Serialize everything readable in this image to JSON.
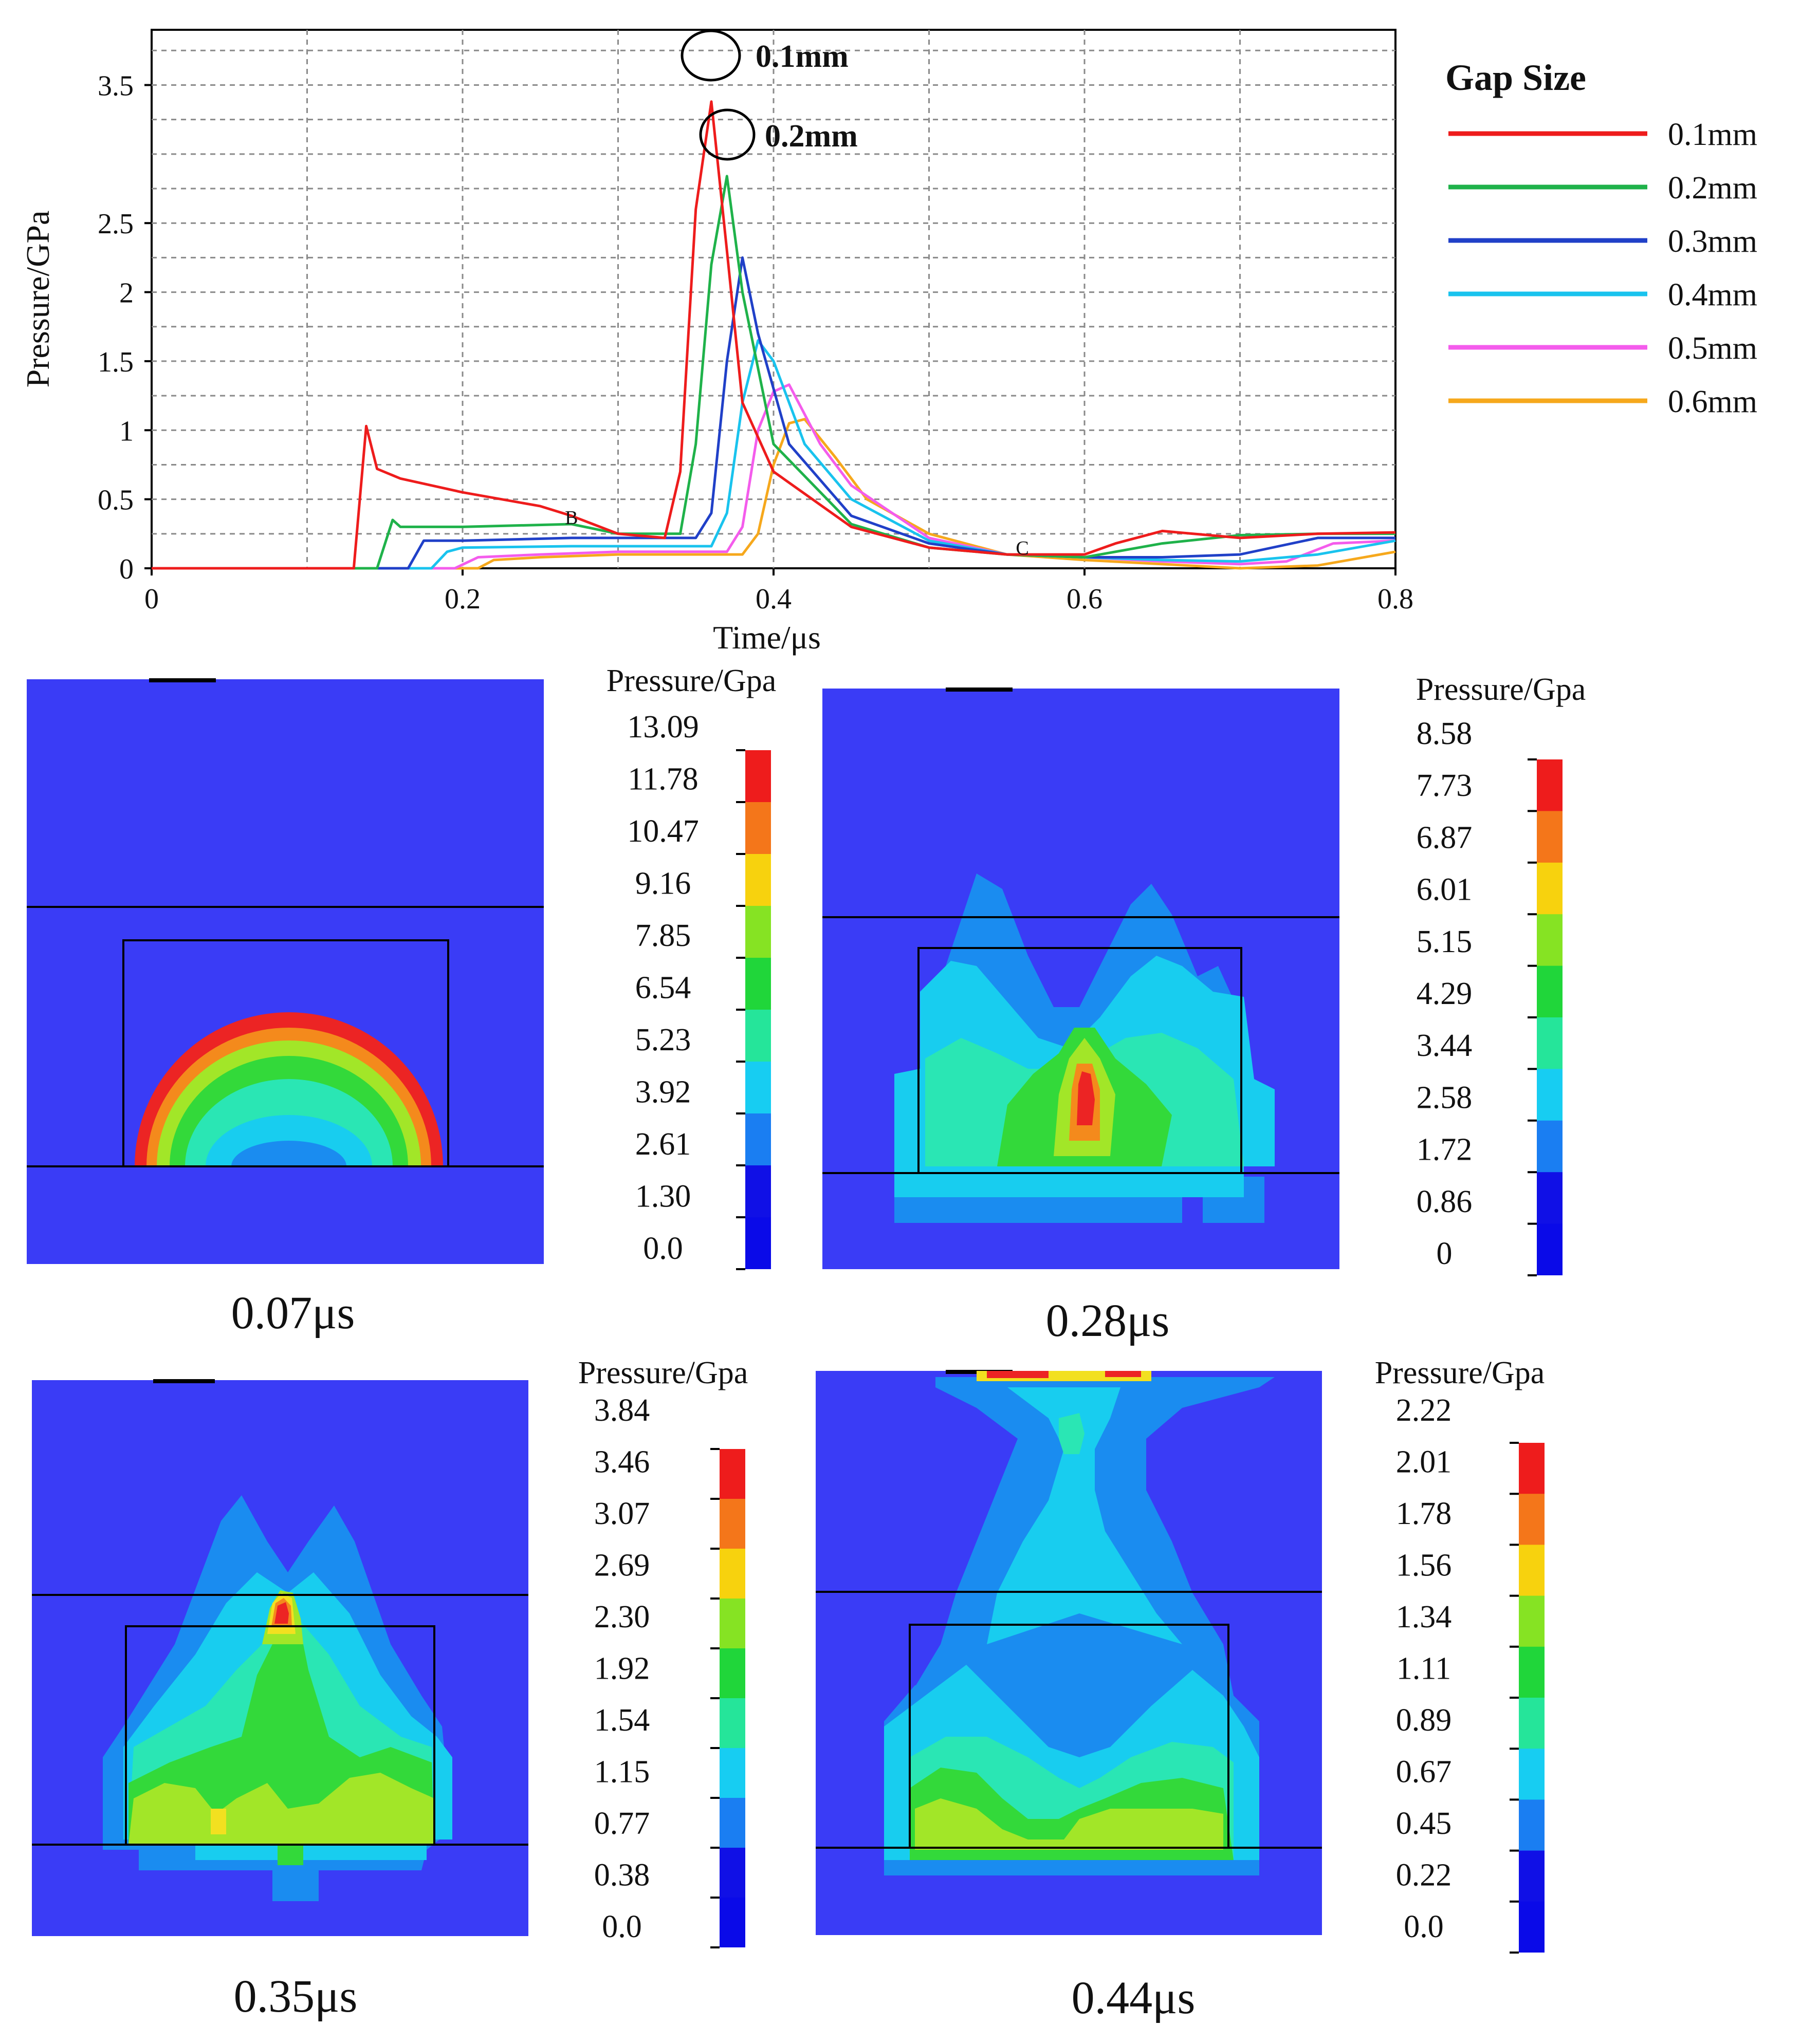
{
  "chart_data": {
    "type": "line",
    "xlabel": "Time/μs",
    "ylabel": "Pressure/GPa",
    "xlim": [
      0,
      0.8
    ],
    "ylim": [
      0,
      3.9
    ],
    "x_ticks": [
      "0",
      "0.2",
      "0.4",
      "0.6",
      "0.8"
    ],
    "y_ticks": [
      "0",
      "0.5",
      "1",
      "1.5",
      "2",
      "2.5",
      "3.5"
    ],
    "grid": true,
    "legend_title": "Gap Size",
    "legend_position": "right",
    "point_labels": [
      {
        "text": "B",
        "x": 0.27,
        "y": 0.32
      },
      {
        "text": "C",
        "x": 0.56,
        "y": 0.1
      }
    ],
    "peak_annotations": [
      {
        "text": "0.1mm",
        "x": 0.36,
        "y": 3.38
      },
      {
        "text": "0.2mm",
        "x": 0.37,
        "y": 2.84
      }
    ],
    "series": [
      {
        "name": "0.1mm",
        "color": "#ee1c1c",
        "x": [
          0,
          0.13,
          0.138,
          0.145,
          0.16,
          0.2,
          0.25,
          0.27,
          0.3,
          0.33,
          0.34,
          0.35,
          0.36,
          0.37,
          0.38,
          0.4,
          0.45,
          0.5,
          0.55,
          0.6,
          0.62,
          0.65,
          0.7,
          0.75,
          0.8
        ],
        "y": [
          0,
          0,
          1.03,
          0.72,
          0.65,
          0.55,
          0.45,
          0.38,
          0.25,
          0.22,
          0.7,
          2.6,
          3.38,
          2.3,
          1.2,
          0.7,
          0.3,
          0.15,
          0.1,
          0.1,
          0.18,
          0.27,
          0.22,
          0.25,
          0.26
        ]
      },
      {
        "name": "0.2mm",
        "color": "#1fb24a",
        "x": [
          0,
          0.145,
          0.155,
          0.16,
          0.2,
          0.27,
          0.3,
          0.34,
          0.35,
          0.36,
          0.37,
          0.38,
          0.4,
          0.45,
          0.5,
          0.55,
          0.6,
          0.65,
          0.7,
          0.75,
          0.8
        ],
        "y": [
          0,
          0,
          0.35,
          0.3,
          0.3,
          0.32,
          0.25,
          0.25,
          0.9,
          2.2,
          2.84,
          2.0,
          0.9,
          0.32,
          0.15,
          0.1,
          0.08,
          0.18,
          0.24,
          0.25,
          0.25
        ]
      },
      {
        "name": "0.3mm",
        "color": "#2040c8",
        "x": [
          0,
          0.165,
          0.175,
          0.2,
          0.27,
          0.3,
          0.35,
          0.36,
          0.37,
          0.38,
          0.39,
          0.41,
          0.45,
          0.5,
          0.55,
          0.6,
          0.65,
          0.7,
          0.75,
          0.8
        ],
        "y": [
          0,
          0,
          0.2,
          0.2,
          0.22,
          0.22,
          0.22,
          0.4,
          1.5,
          2.25,
          1.7,
          0.9,
          0.38,
          0.18,
          0.1,
          0.08,
          0.08,
          0.1,
          0.22,
          0.22
        ]
      },
      {
        "name": "0.4mm",
        "color": "#19c3ee",
        "x": [
          0,
          0.18,
          0.19,
          0.2,
          0.27,
          0.3,
          0.36,
          0.37,
          0.38,
          0.39,
          0.4,
          0.42,
          0.45,
          0.5,
          0.55,
          0.6,
          0.65,
          0.7,
          0.75,
          0.8
        ],
        "y": [
          0,
          0,
          0.12,
          0.15,
          0.16,
          0.16,
          0.16,
          0.4,
          1.2,
          1.65,
          1.5,
          0.9,
          0.5,
          0.2,
          0.1,
          0.08,
          0.06,
          0.05,
          0.1,
          0.2
        ]
      },
      {
        "name": "0.5mm",
        "color": "#f45cec",
        "x": [
          0,
          0.195,
          0.21,
          0.25,
          0.3,
          0.37,
          0.38,
          0.39,
          0.4,
          0.41,
          0.43,
          0.45,
          0.5,
          0.55,
          0.6,
          0.65,
          0.7,
          0.73,
          0.76,
          0.8
        ],
        "y": [
          0,
          0,
          0.08,
          0.1,
          0.12,
          0.12,
          0.3,
          1.0,
          1.28,
          1.33,
          0.9,
          0.6,
          0.22,
          0.1,
          0.08,
          0.05,
          0.03,
          0.05,
          0.18,
          0.2
        ]
      },
      {
        "name": "0.6mm",
        "color": "#f6a81c",
        "x": [
          0,
          0.21,
          0.22,
          0.25,
          0.3,
          0.38,
          0.39,
          0.4,
          0.41,
          0.42,
          0.44,
          0.46,
          0.5,
          0.55,
          0.6,
          0.65,
          0.7,
          0.75,
          0.8
        ],
        "y": [
          0,
          0,
          0.06,
          0.08,
          0.1,
          0.1,
          0.25,
          0.75,
          1.05,
          1.08,
          0.8,
          0.5,
          0.25,
          0.1,
          0.06,
          0.03,
          0.0,
          0.02,
          0.12
        ]
      }
    ]
  },
  "panels": [
    {
      "time": "0.07μs",
      "legend_title": "Pressure/Gpa",
      "scale": [
        "13.09",
        "11.78",
        "10.47",
        "9.16",
        "7.85",
        "6.54",
        "5.23",
        "3.92",
        "2.61",
        "1.30",
        "0.0"
      ]
    },
    {
      "time": "0.28μs",
      "legend_title": "Pressure/Gpa",
      "scale": [
        "8.58",
        "7.73",
        "6.87",
        "6.01",
        "5.15",
        "4.29",
        "3.44",
        "2.58",
        "1.72",
        "0.86",
        "0"
      ]
    },
    {
      "time": "0.35μs",
      "legend_title": "Pressure/Gpa",
      "scale": [
        "3.84",
        "3.46",
        "3.07",
        "2.69",
        "2.30",
        "1.92",
        "1.54",
        "1.15",
        "0.77",
        "0.38",
        "0.0"
      ]
    },
    {
      "time": "0.44μs",
      "legend_title": "Pressure/Gpa",
      "scale": [
        "2.22",
        "2.01",
        "1.78",
        "1.56",
        "1.34",
        "1.11",
        "0.89",
        "0.67",
        "0.45",
        "0.22",
        "0.0"
      ]
    }
  ],
  "colormap": [
    "#ee1c1c",
    "#f4761a",
    "#f7d20e",
    "#86e323",
    "#20d63a",
    "#25e59a",
    "#17cdf2",
    "#1a7ef2",
    "#1010e6"
  ],
  "contour_colors": {
    "background": "#3a3cf6",
    "light_blue": "#1a8cf0",
    "cyan": "#18cdef",
    "aqua": "#2ae6b4",
    "green": "#33d93a",
    "yellow_green": "#a2e628",
    "yellow": "#f2e020",
    "orange": "#f48a1c",
    "red": "#ec2424"
  }
}
